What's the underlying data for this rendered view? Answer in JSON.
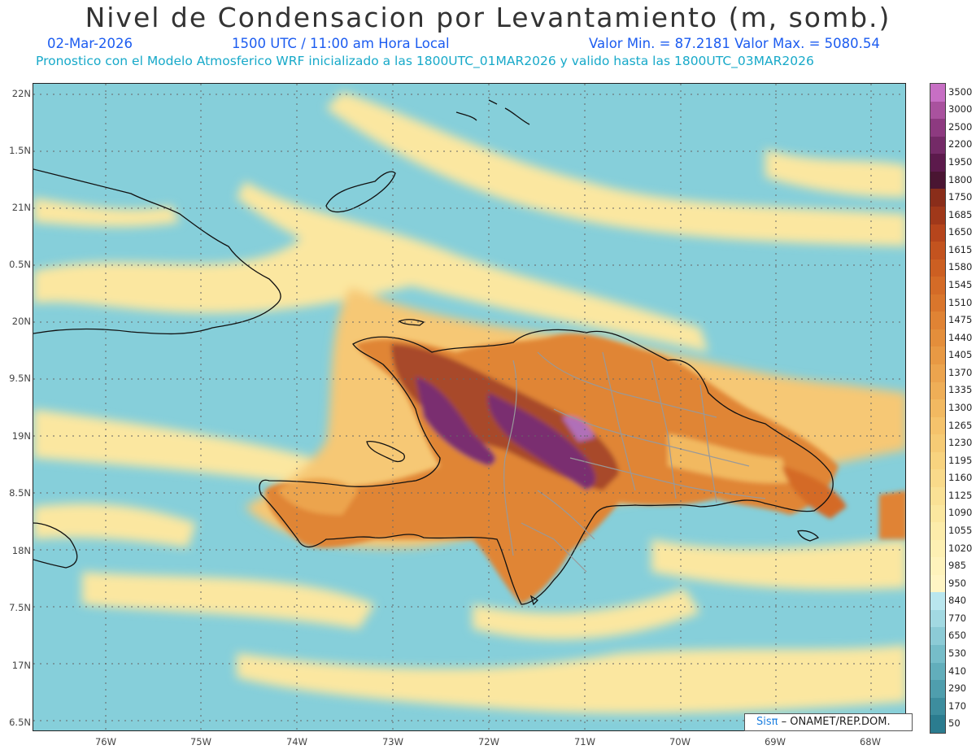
{
  "header": {
    "title": "Nivel de Condensacion por Levantamiento (m, somb.)",
    "date": "02-Mar-2026",
    "time": "1500 UTC / 11:00 am Hora Local",
    "stats": "Valor Min. = 87.2181   Valor Max. = 5080.54",
    "forecast_info": "Pronostico con el Modelo Atmosferico WRF inicializado a las 1800UTC_01MAR2026 y valido hasta las  1800UTC_03MAR2026"
  },
  "axes": {
    "lat_labels": [
      "22N",
      "1.5N",
      "21N",
      "0.5N",
      "20N",
      "9.5N",
      "19N",
      "8.5N",
      "18N",
      "7.5N",
      "17N",
      "6.5N"
    ],
    "lon_labels": [
      "76W",
      "75W",
      "74W",
      "73W",
      "72W",
      "71W",
      "70W",
      "69W",
      "68W"
    ]
  },
  "credit": {
    "logo_text": "Sisπ",
    "text": " – ONAMET/REP.DOM."
  },
  "colorbar": {
    "labels": [
      "3500",
      "3000",
      "2500",
      "2200",
      "1950",
      "1800",
      "1750",
      "1685",
      "1650",
      "1615",
      "1580",
      "1545",
      "1510",
      "1475",
      "1440",
      "1405",
      "1370",
      "1335",
      "1300",
      "1265",
      "1230",
      "1195",
      "1160",
      "1125",
      "1090",
      "1055",
      "1020",
      "985",
      "950",
      "840",
      "770",
      "650",
      "530",
      "410",
      "290",
      "170",
      "50"
    ],
    "colors": [
      "#c76fc4",
      "#a9529e",
      "#8d3a80",
      "#742a67",
      "#5c1a4c",
      "#4a1532",
      "#8a2d1a",
      "#a0381a",
      "#b6451c",
      "#c3531f",
      "#cc5f22",
      "#d46b27",
      "#da762c",
      "#e08334",
      "#e48e3b",
      "#e89944",
      "#eca44e",
      "#efae57",
      "#f2b961",
      "#f5c36c",
      "#f6cb75",
      "#f8d37f",
      "#f9da8a",
      "#fae195",
      "#fbe79f",
      "#fcecaa",
      "#fdf0b3",
      "#fef3bc",
      "#fff5c4",
      "#b9e6ee",
      "#a2d9e2",
      "#8ccbd6",
      "#76bdc9",
      "#62aebb",
      "#4f9ead",
      "#3d8d9e",
      "#2b7c8f"
    ]
  },
  "legend_meaning": {
    "low_color": "#6cc9d8",
    "mid_color": "#fbe7a0",
    "high_color": "#dd7a2e",
    "max_color": "#7a2e70"
  }
}
